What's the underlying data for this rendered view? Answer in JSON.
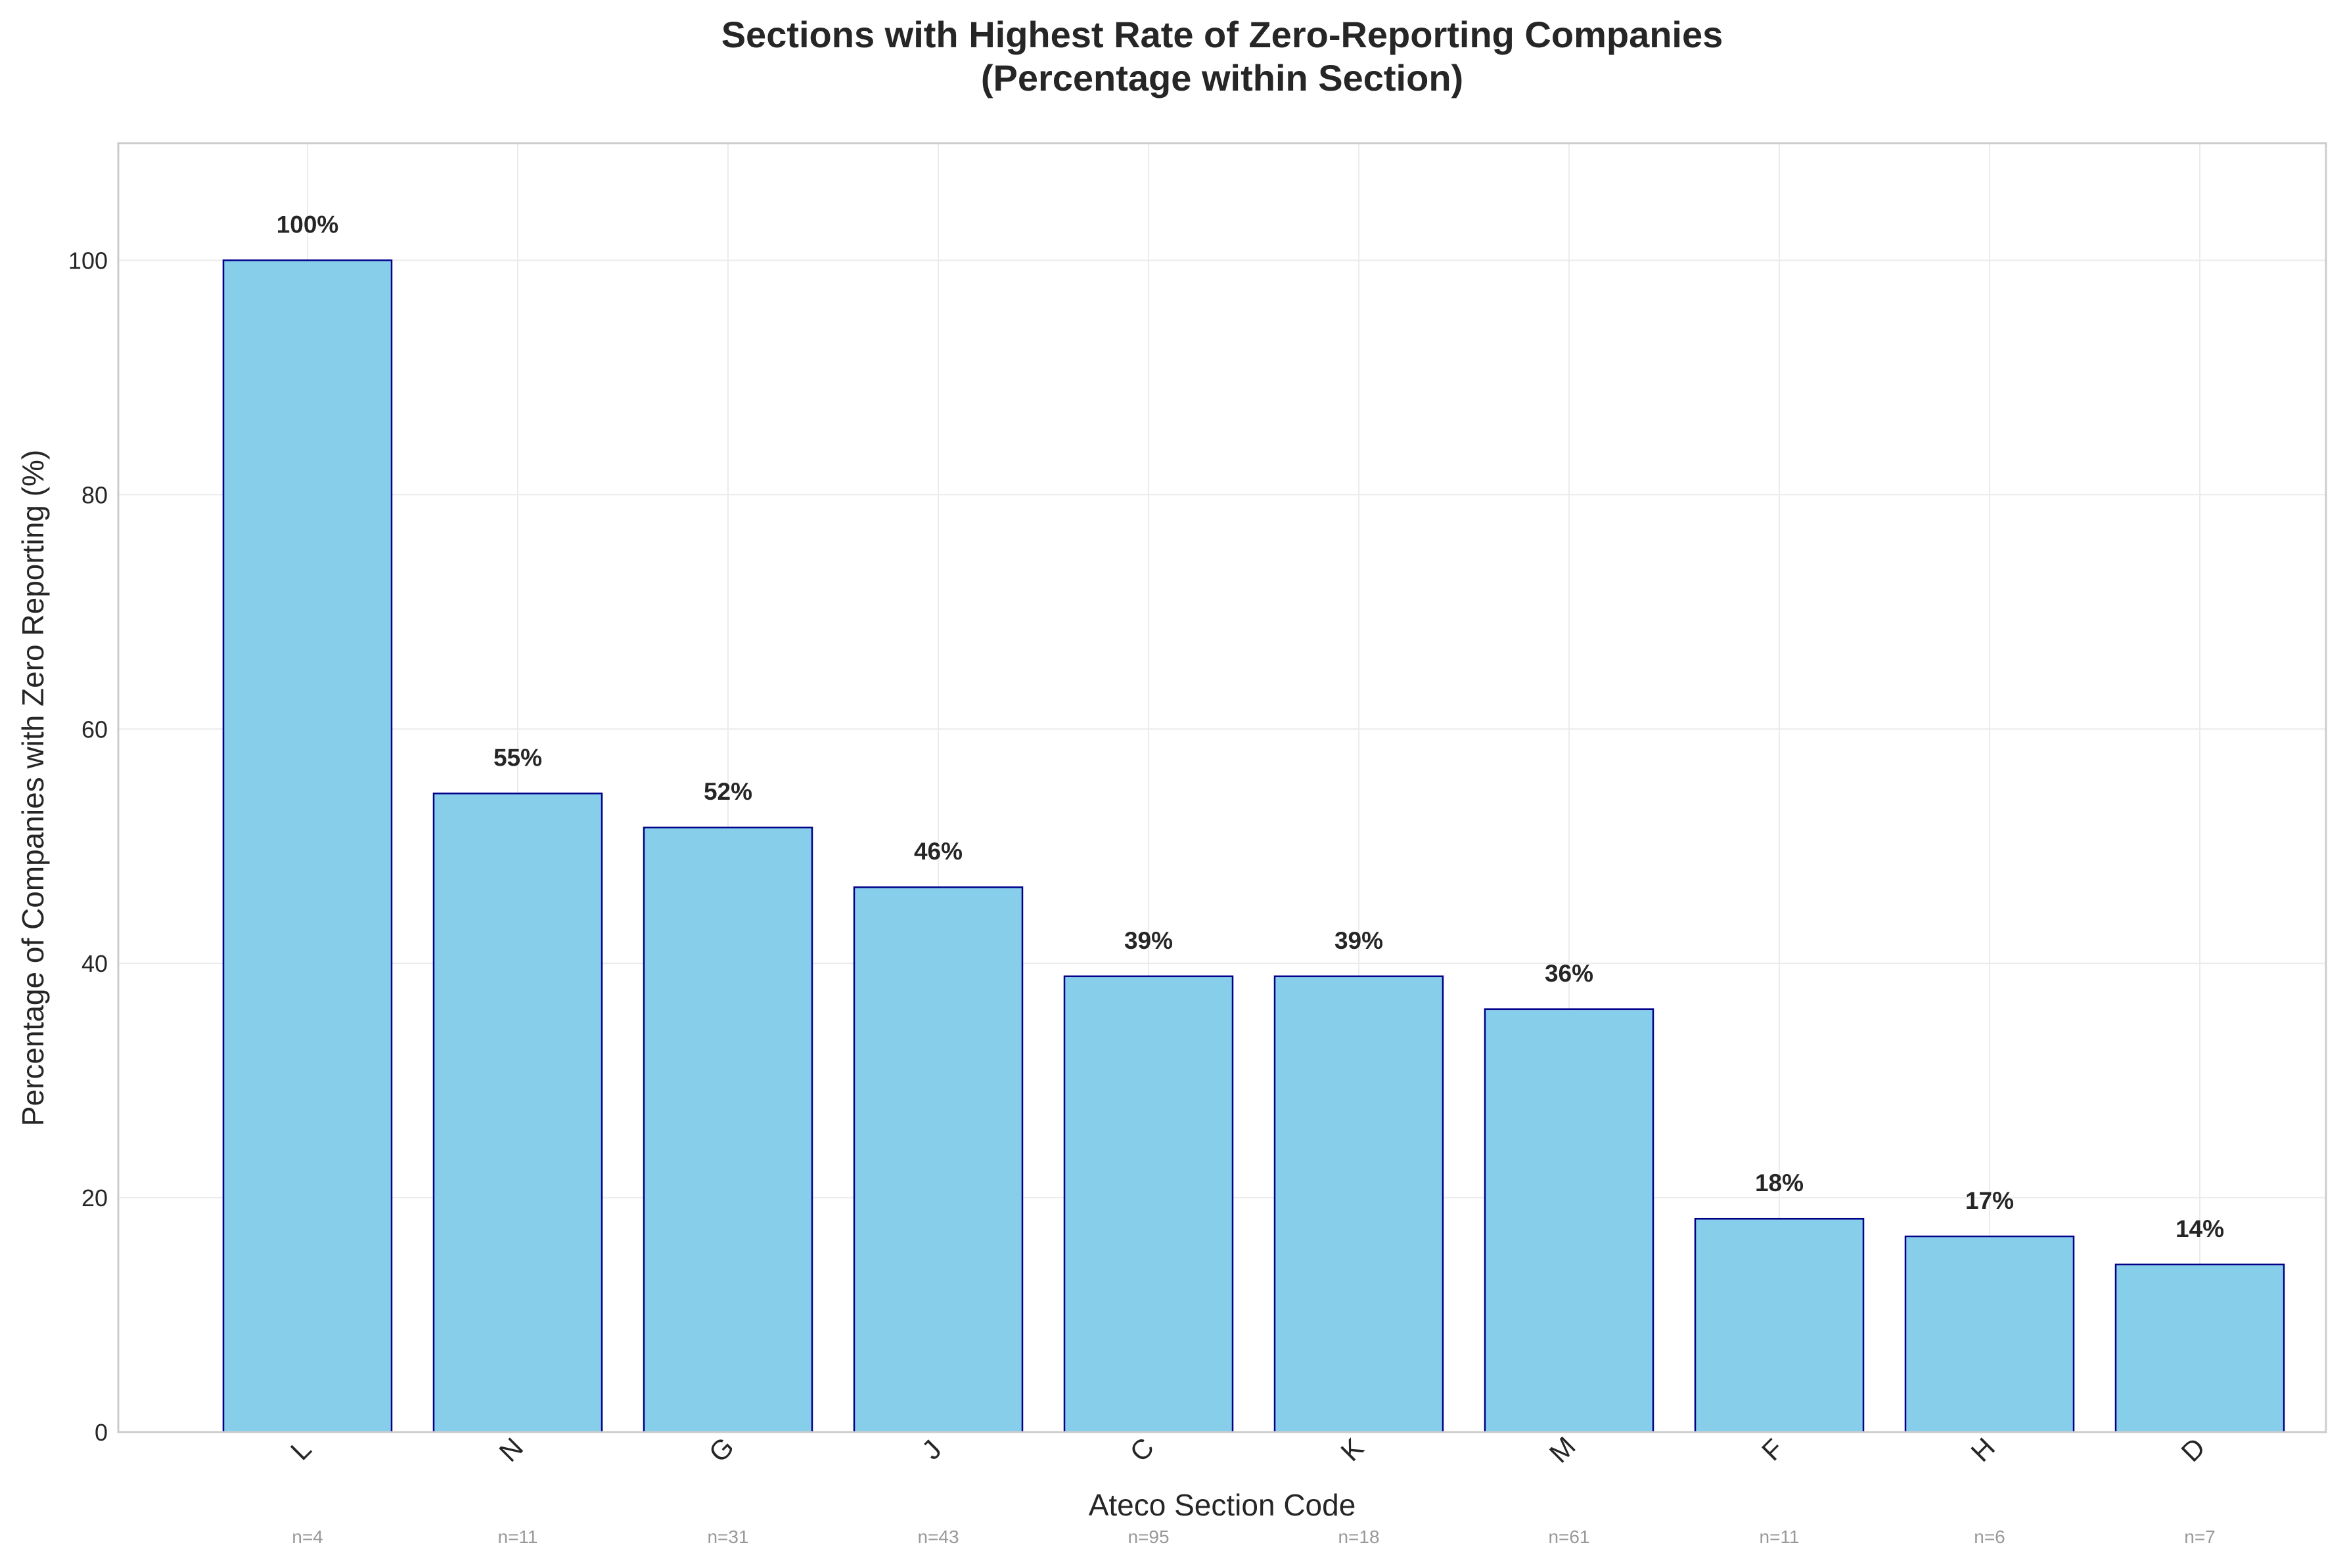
{
  "chart_data": {
    "type": "bar",
    "title": "Sections with Highest Rate of Zero-Reporting Companies",
    "subtitle": "(Percentage within Section)",
    "xlabel": "Ateco Section Code",
    "ylabel": "Percentage of Companies with Zero Reporting (%)",
    "categories": [
      "L",
      "N",
      "G",
      "J",
      "C",
      "K",
      "M",
      "F",
      "H",
      "D"
    ],
    "values": [
      100.0,
      54.5,
      51.6,
      46.5,
      38.9,
      38.9,
      36.1,
      18.2,
      16.7,
      14.3
    ],
    "value_labels": [
      "100%",
      "55%",
      "52%",
      "46%",
      "39%",
      "39%",
      "36%",
      "18%",
      "17%",
      "14%"
    ],
    "sample_sizes": [
      "n=4",
      "n=11",
      "n=31",
      "n=43",
      "n=95",
      "n=18",
      "n=61",
      "n=11",
      "n=6",
      "n=7"
    ],
    "ylim": [
      0,
      110
    ],
    "yticks": [
      0,
      20,
      40,
      60,
      80,
      100
    ],
    "grid": true,
    "colors": {
      "bar_fill": "#87ceeb",
      "bar_edge": "#00008b",
      "grid": "#ebebeb",
      "frame": "#cccccc",
      "text": "#262626",
      "n_text": "#999999"
    }
  }
}
